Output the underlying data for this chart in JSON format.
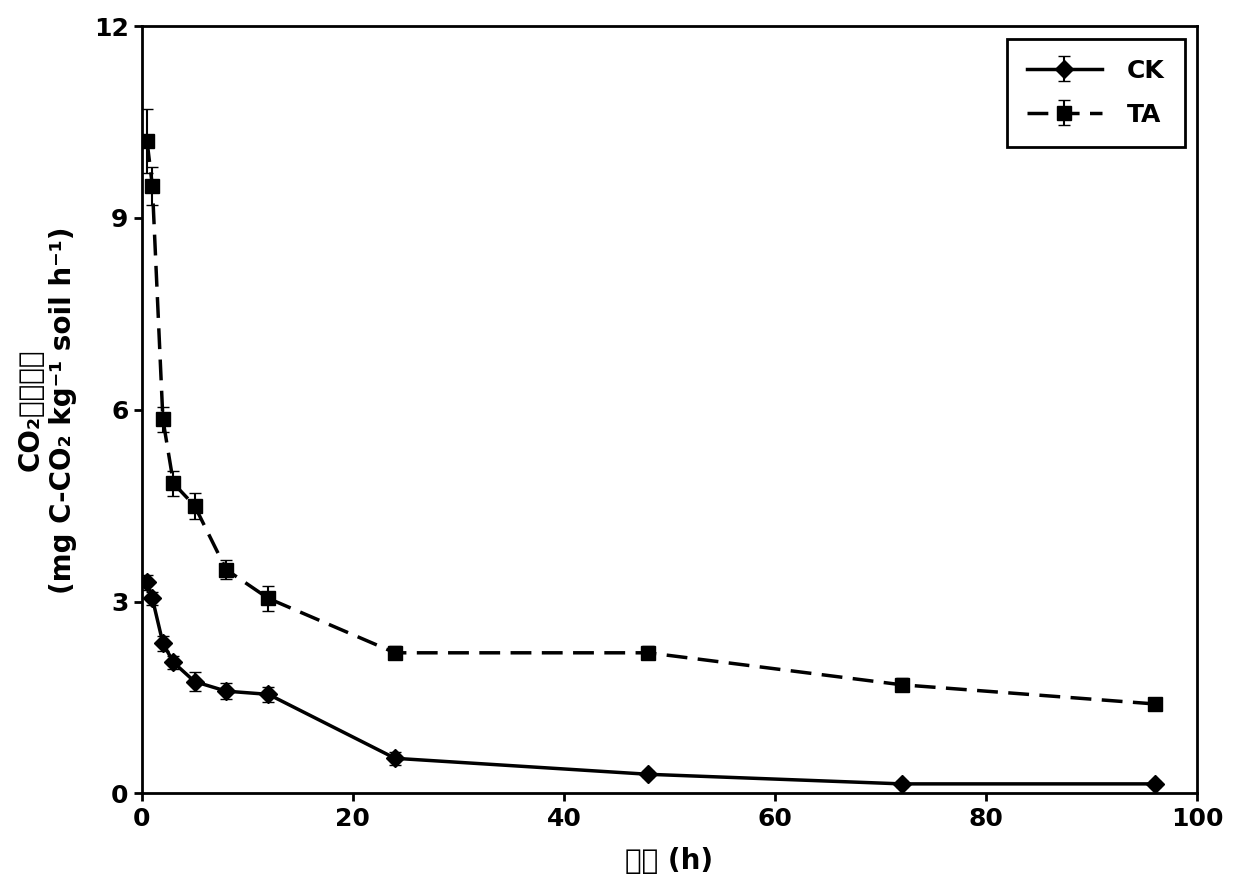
{
  "CK_x": [
    0.5,
    1,
    2,
    3,
    5,
    8,
    12,
    24,
    48,
    72,
    96
  ],
  "CK_y": [
    3.3,
    3.05,
    2.35,
    2.05,
    1.75,
    1.6,
    1.55,
    0.55,
    0.3,
    0.15,
    0.15
  ],
  "CK_yerr": [
    0.12,
    0.1,
    0.12,
    0.1,
    0.15,
    0.12,
    0.12,
    0.1,
    0.05,
    0.05,
    0.05
  ],
  "TA_x": [
    0.5,
    1,
    2,
    3,
    5,
    8,
    12,
    24,
    48,
    72,
    96
  ],
  "TA_y": [
    10.2,
    9.5,
    5.85,
    4.85,
    4.5,
    3.5,
    3.05,
    2.2,
    2.2,
    1.7,
    1.4
  ],
  "TA_yerr": [
    0.5,
    0.3,
    0.2,
    0.2,
    0.2,
    0.15,
    0.2,
    0.1,
    0.1,
    0.1,
    0.08
  ],
  "xlim": [
    0,
    100
  ],
  "ylim": [
    0,
    12
  ],
  "xticks": [
    0,
    20,
    40,
    60,
    80,
    100
  ],
  "yticks": [
    0,
    3,
    6,
    9,
    12
  ],
  "xlabel_zh": "时间",
  "xlabel_unit": " (h)",
  "ylabel_zh": "CO₂释放速率",
  "ylabel_en": "(mg C-CO₂ kg⁻¹ soil h⁻¹)",
  "legend_CK": "CK",
  "legend_TA": "TA",
  "line_color": "#000000",
  "background_color": "#ffffff",
  "label_fontsize": 20,
  "tick_fontsize": 18,
  "legend_fontsize": 18
}
